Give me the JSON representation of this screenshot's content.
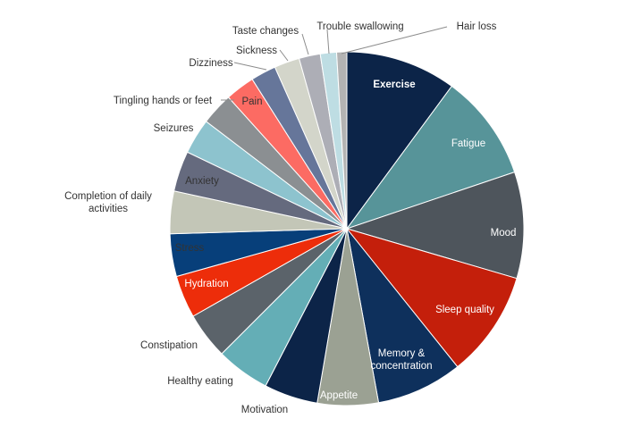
{
  "chart_data": {
    "type": "pie",
    "title": "",
    "slices": [
      {
        "label": "Exercise",
        "value": 10.9,
        "color": "#0c2448",
        "label_color": "#ffffff",
        "bold": true
      },
      {
        "label": "Fatigue",
        "value": 10.5,
        "color": "#579499",
        "label_color": "#ffffff"
      },
      {
        "label": "Mood",
        "value": 10.5,
        "color": "#4e555c",
        "label_color": "#ffffff"
      },
      {
        "label": "Sleep quality",
        "value": 10.5,
        "color": "#c41f0b",
        "label_color": "#ffffff"
      },
      {
        "label": "Memory &\nconcentration",
        "value": 8.5,
        "color": "#0e305c",
        "label_color": "#ffffff"
      },
      {
        "label": "Appetite",
        "value": 6.0,
        "color": "#9ba193",
        "label_color": "#ffffff"
      },
      {
        "label": "Motivation",
        "value": 5.3,
        "color": "#0c2448",
        "label_color": "#333333"
      },
      {
        "label": "Healthy eating",
        "value": 5.3,
        "color": "#64aeb6",
        "label_color": "#333333"
      },
      {
        "label": "Constipation",
        "value": 4.6,
        "color": "#5b636a",
        "label_color": "#333333"
      },
      {
        "label": "Hydration",
        "value": 4.2,
        "color": "#ed2d0a",
        "label_color": "#ffffff"
      },
      {
        "label": "Stress",
        "value": 4.2,
        "color": "#073f7a",
        "label_color": "#333333"
      },
      {
        "label": "Completion of daily\nactivities",
        "value": 4.2,
        "color": "#c3c6b7",
        "label_color": "#333333"
      },
      {
        "label": "Anxiety",
        "value": 4.0,
        "color": "#656a7e",
        "label_color": "#333333"
      },
      {
        "label": "Seizures",
        "value": 3.5,
        "color": "#8dc3ce",
        "label_color": "#333333"
      },
      {
        "label": "Tingling hands or feet",
        "value": 3.2,
        "color": "#8b8f92",
        "label_color": "#333333"
      },
      {
        "label": "Pain",
        "value": 2.9,
        "color": "#fc6b63",
        "label_color": "#333333"
      },
      {
        "label": "Dizziness",
        "value": 2.5,
        "color": "#66769a",
        "label_color": "#333333"
      },
      {
        "label": "Sickness",
        "value": 2.5,
        "color": "#d3d5ca",
        "label_color": "#333333"
      },
      {
        "label": "Taste changes",
        "value": 2.1,
        "color": "#adaeb6",
        "label_color": "#333333"
      },
      {
        "label": "Trouble swallowing",
        "value": 1.6,
        "color": "#bedde3",
        "label_color": "#333333"
      },
      {
        "label": "Hair loss",
        "value": 1.0,
        "color": "#b3b3b3",
        "label_color": "#333333"
      }
    ]
  }
}
